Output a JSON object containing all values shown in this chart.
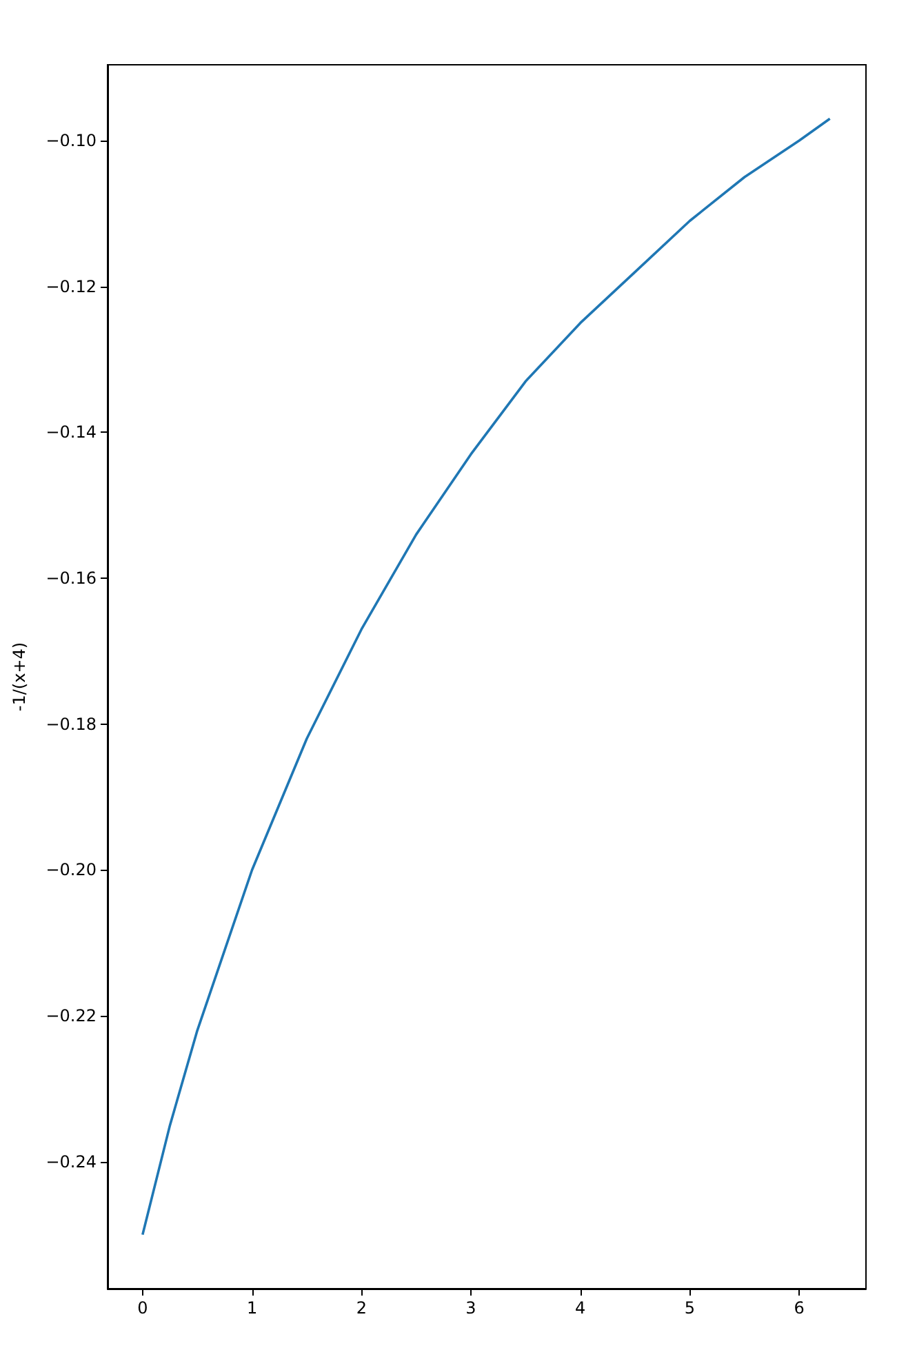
{
  "chart_data": {
    "type": "line",
    "ylabel": "-1/(x+4)",
    "color": "#1f77b4",
    "marker": "none",
    "x": [
      0,
      0.25,
      0.5,
      0.75,
      1,
      1.5,
      2,
      2.5,
      3,
      3.5,
      4,
      4.5,
      5,
      5.5,
      6,
      6.28
    ],
    "values": [
      -0.25,
      -0.235,
      -0.222,
      -0.211,
      -0.2,
      -0.182,
      -0.167,
      -0.154,
      -0.143,
      -0.133,
      -0.125,
      -0.118,
      -0.111,
      -0.105,
      -0.1,
      -0.097
    ],
    "xlim": [
      -0.32,
      6.61
    ],
    "ylim": [
      -0.2574,
      -0.0896
    ],
    "xticks": [
      0,
      1,
      2,
      3,
      4,
      5,
      6
    ],
    "yticks": [
      {
        "value": -0.24,
        "label": "−0.24"
      },
      {
        "value": -0.22,
        "label": "−0.22"
      },
      {
        "value": -0.2,
        "label": "−0.20"
      },
      {
        "value": -0.18,
        "label": "−0.18"
      },
      {
        "value": -0.16,
        "label": "−0.16"
      },
      {
        "value": -0.14,
        "label": "−0.14"
      },
      {
        "value": -0.12,
        "label": "−0.12"
      },
      {
        "value": -0.1,
        "label": "−0.10"
      }
    ]
  }
}
